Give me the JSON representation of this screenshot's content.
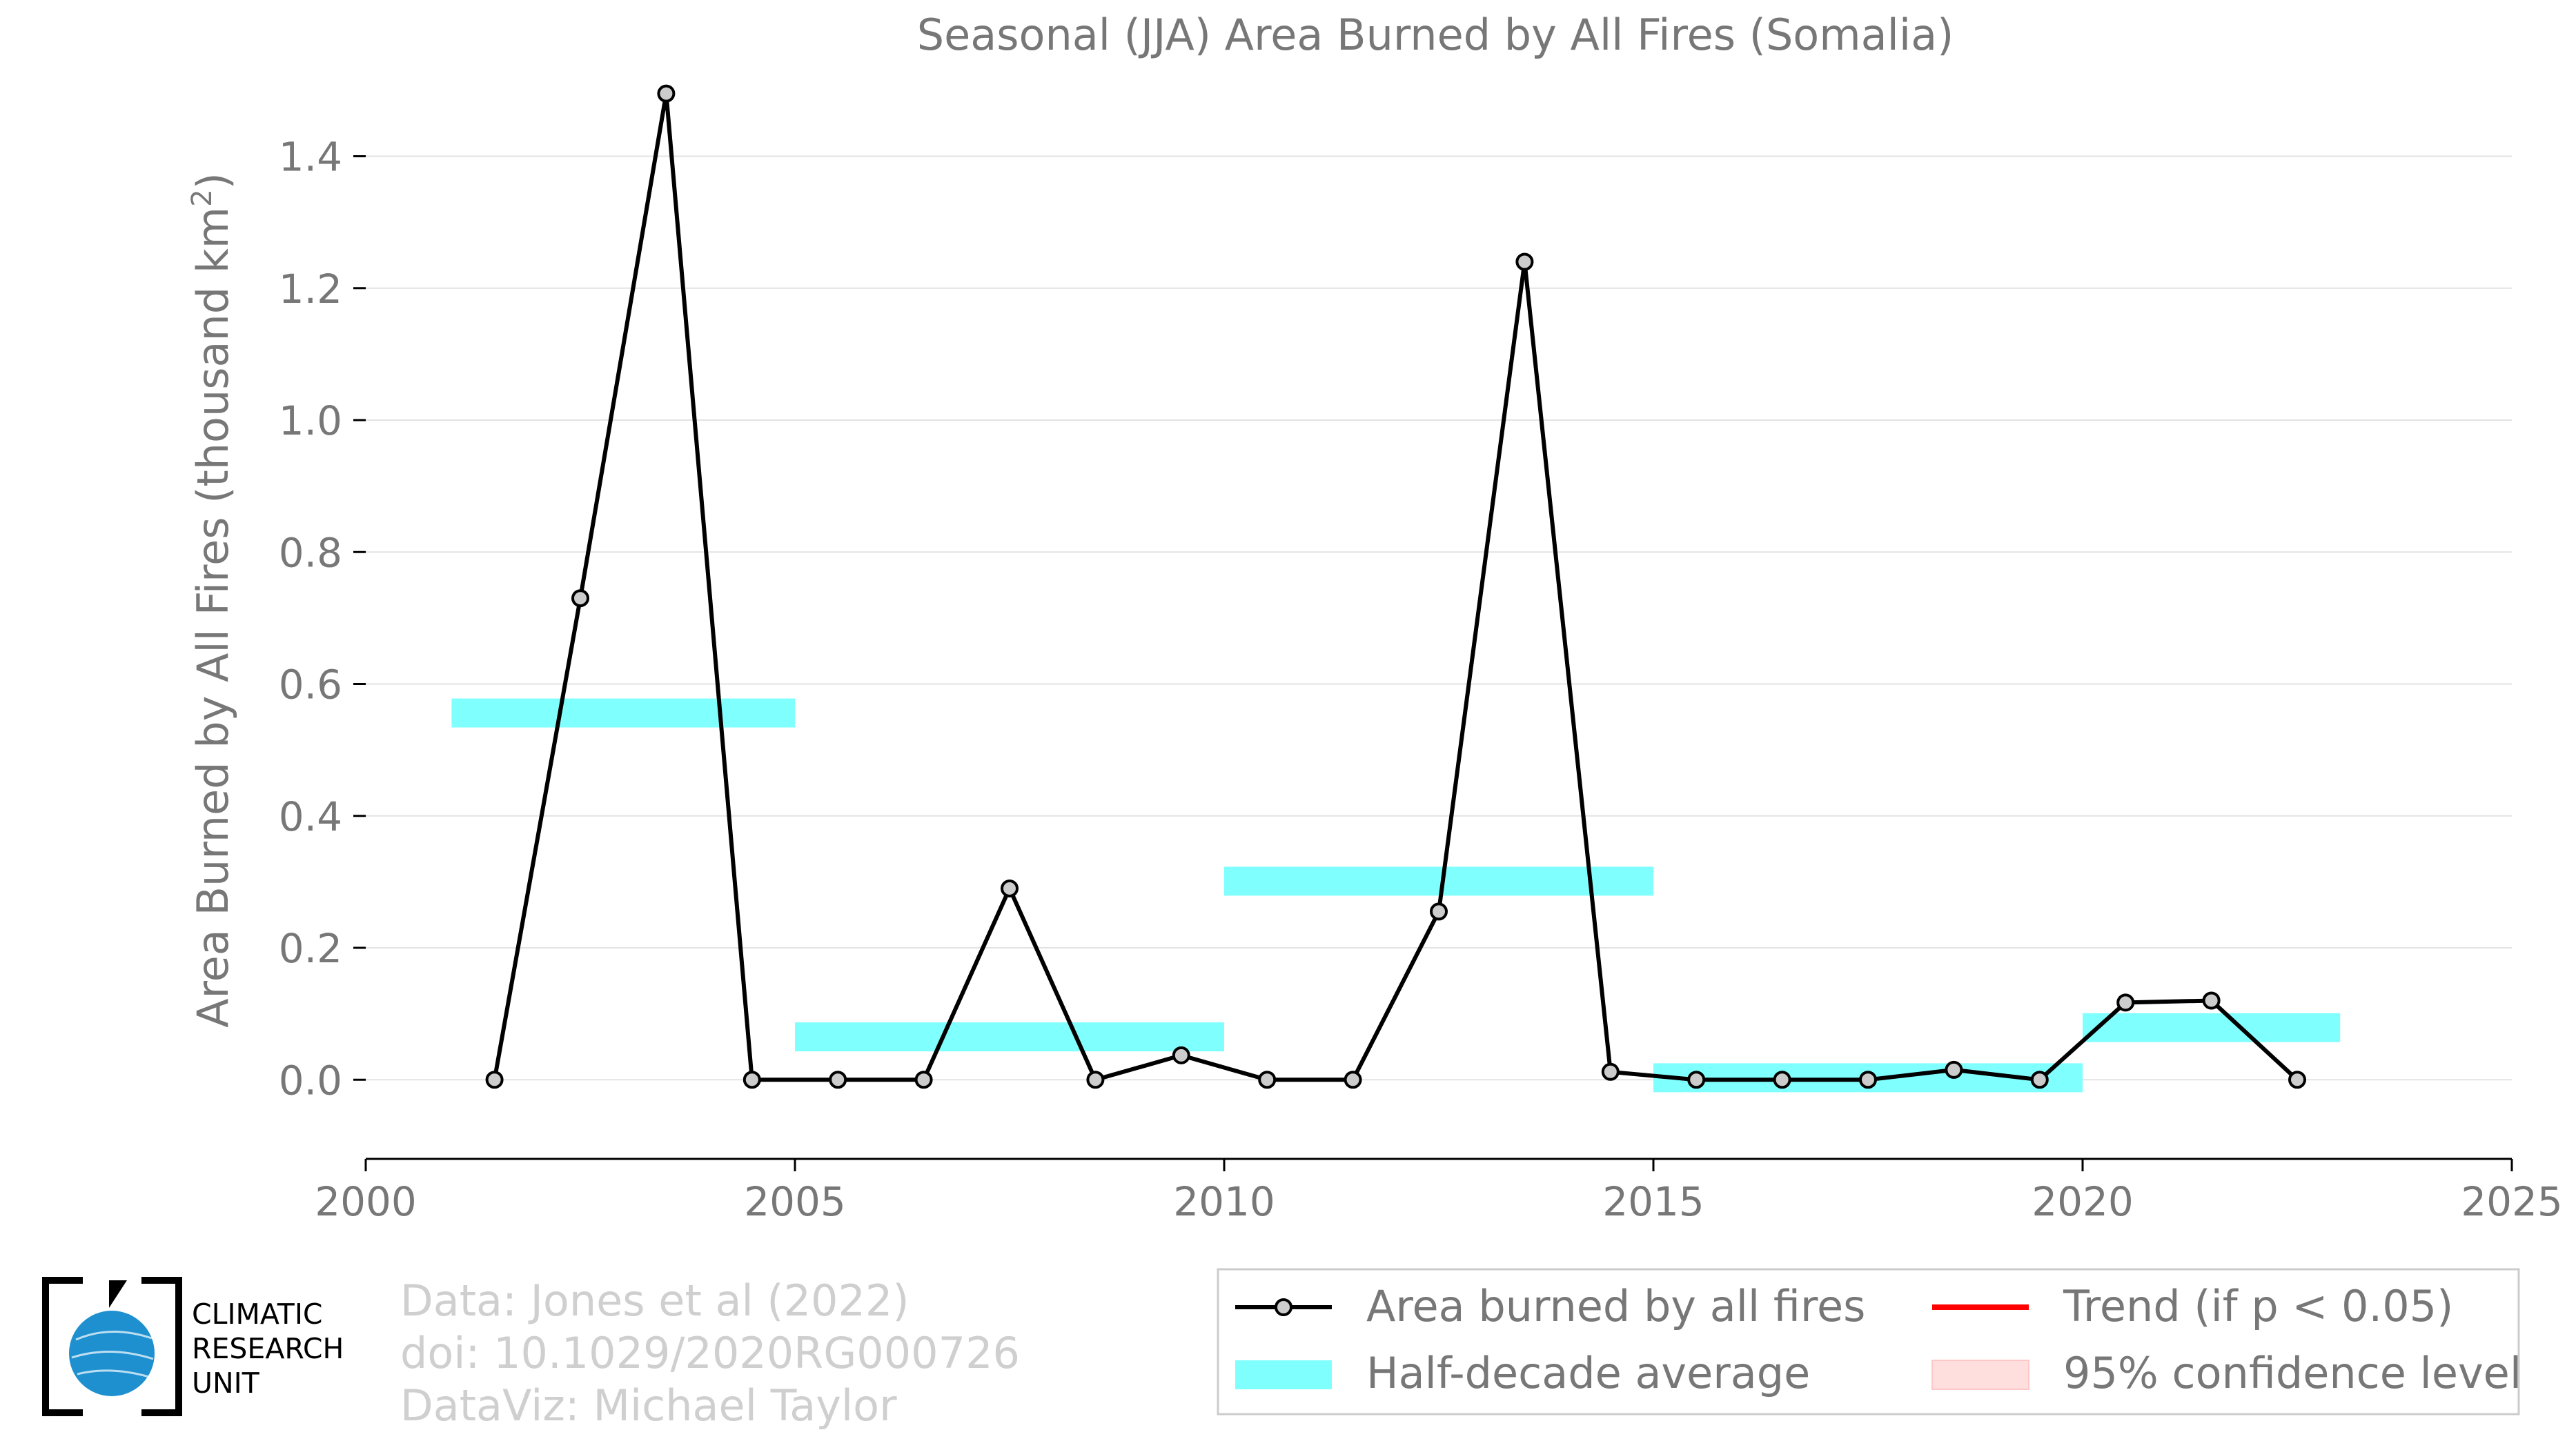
{
  "chart_data": {
    "type": "line",
    "title": "Seasonal (JJA) Area Burned by All Fires (Somalia)",
    "ylabel": "Area Burned by All Fires (thousand km",
    "ylabel_sup": "2",
    "ylabel_close": ")",
    "xlim": [
      2000,
      2025
    ],
    "ylim": [
      -0.12,
      1.48
    ],
    "xticks": [
      2000,
      2005,
      2010,
      2015,
      2020,
      2025
    ],
    "yticks": [
      0.0,
      0.2,
      0.4,
      0.6,
      0.8,
      1.0,
      1.2,
      1.4
    ],
    "ytick_labels": [
      "0.0",
      "0.2",
      "0.4",
      "0.6",
      "0.8",
      "1.0",
      "1.2",
      "1.4"
    ],
    "grid": "horizontal",
    "series": [
      {
        "name": "Area burned by all fires",
        "color": "#000000",
        "marker_color": "#cccccc",
        "x": [
          2001.5,
          2002.5,
          2003.5,
          2004.5,
          2005.5,
          2006.5,
          2007.5,
          2008.5,
          2009.5,
          2010.5,
          2011.5,
          2012.5,
          2013.5,
          2014.5,
          2015.5,
          2016.5,
          2017.5,
          2018.5,
          2019.5,
          2020.5,
          2021.5,
          2022.5
        ],
        "values": [
          0.0,
          0.73,
          1.495,
          0.0,
          0.0,
          0.0,
          0.29,
          0.0,
          0.037,
          0.0,
          0.0,
          0.255,
          1.24,
          0.012,
          0.0,
          0.0,
          0.0,
          0.015,
          0.0,
          0.117,
          0.12,
          0.0
        ]
      }
    ],
    "half_decade_average": {
      "name": "Half-decade average",
      "color": "#80ffff",
      "segments": [
        {
          "x0": 2001,
          "x1": 2005,
          "value": 0.556
        },
        {
          "x0": 2005,
          "x1": 2010,
          "value": 0.065
        },
        {
          "x0": 2010,
          "x1": 2015,
          "value": 0.301
        },
        {
          "x0": 2015,
          "x1": 2020,
          "value": 0.003
        },
        {
          "x0": 2020,
          "x1": 2023,
          "value": 0.079
        }
      ]
    },
    "legend": {
      "placement": "bottom-right",
      "items": [
        {
          "label": "Area burned by all fires",
          "kind": "line-marker",
          "color": "#000000"
        },
        {
          "label": "Trend (if p < 0.05)",
          "kind": "line",
          "color": "#ff0000"
        },
        {
          "label": "Half-decade average",
          "kind": "band",
          "color": "#80ffff"
        },
        {
          "label": "95% confidence level",
          "kind": "patch",
          "color": "#ffdede"
        }
      ]
    }
  },
  "credits": {
    "line1": "Data: Jones et al (2022)",
    "line2": "doi: 10.1029/2020RG000726",
    "line3": "DataViz: Michael Taylor"
  },
  "logo": {
    "line1": "CLIMATIC",
    "line2": "RESEARCH",
    "line3": "UNIT",
    "globe_color": "#1e90d0"
  }
}
